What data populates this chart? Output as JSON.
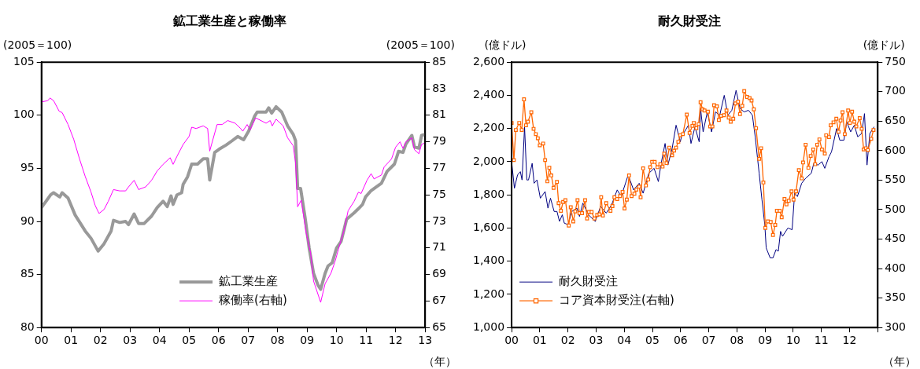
{
  "chart_data": [
    {
      "type": "line",
      "title": "鉱工業生産と稼働率",
      "ylabel": "(2005＝100)",
      "y2label": "(2005＝100)",
      "xlabel": "（年）",
      "xlim": [
        2000,
        2013
      ],
      "xticks": [
        {
          "value": 2000,
          "label": "00"
        },
        {
          "value": 2001,
          "label": "01"
        },
        {
          "value": 2002,
          "label": "02"
        },
        {
          "value": 2003,
          "label": "03"
        },
        {
          "value": 2004,
          "label": "04"
        },
        {
          "value": 2005,
          "label": "05"
        },
        {
          "value": 2006,
          "label": "06"
        },
        {
          "value": 2007,
          "label": "07"
        },
        {
          "value": 2008,
          "label": "08"
        },
        {
          "value": 2009,
          "label": "09"
        },
        {
          "value": 2010,
          "label": "10"
        },
        {
          "value": 2011,
          "label": "11"
        },
        {
          "value": 2012,
          "label": "12"
        },
        {
          "value": 2013,
          "label": "13"
        }
      ],
      "ylim": [
        80,
        105
      ],
      "yticks": [
        80,
        85,
        90,
        95,
        100,
        105
      ],
      "y2lim": [
        65,
        85
      ],
      "y2ticks": [
        65,
        67,
        69,
        71,
        73,
        75,
        77,
        79,
        81,
        83,
        85
      ],
      "legend": "bottom",
      "marker": "none",
      "series": [
        {
          "name": "鉱工業生産",
          "color": "#999999",
          "x": [
            2000.0,
            2000.31,
            2000.41,
            2000.62,
            2000.7,
            2000.9,
            2001.14,
            2001.48,
            2001.68,
            2001.92,
            2002.12,
            2002.36,
            2002.44,
            2002.65,
            2002.85,
            2002.95,
            2003.14,
            2003.29,
            2003.48,
            2003.73,
            2003.92,
            2004.12,
            2004.26,
            2004.39,
            2004.46,
            2004.59,
            2004.75,
            2004.8,
            2004.95,
            2005.09,
            2005.29,
            2005.48,
            2005.63,
            2005.7,
            2005.87,
            2006.02,
            2006.26,
            2006.46,
            2006.65,
            2006.85,
            2007.02,
            2007.22,
            2007.31,
            2007.61,
            2007.7,
            2007.8,
            2007.95,
            2008.14,
            2008.34,
            2008.53,
            2008.61,
            2008.68,
            2008.78,
            2008.93,
            2009.07,
            2009.22,
            2009.37,
            2009.46,
            2009.61,
            2009.71,
            2009.85,
            2010.0,
            2010.15,
            2010.34,
            2010.59,
            2010.74,
            2010.88,
            2010.98,
            2011.17,
            2011.27,
            2011.52,
            2011.71,
            2011.96,
            2012.1,
            2012.25,
            2012.35,
            2012.55,
            2012.64,
            2012.79,
            2012.88,
            2013.0
          ],
          "values": [
            91.3,
            92.5,
            92.7,
            92.3,
            92.7,
            92.2,
            90.6,
            89.1,
            88.4,
            87.2,
            87.9,
            89.1,
            90.1,
            89.9,
            90.0,
            89.7,
            90.7,
            89.8,
            89.8,
            90.5,
            91.3,
            91.9,
            91.4,
            92.4,
            91.6,
            92.5,
            92.7,
            93.5,
            94.2,
            95.4,
            95.4,
            95.9,
            95.9,
            93.9,
            96.5,
            96.8,
            97.2,
            97.6,
            98.0,
            97.7,
            98.5,
            99.9,
            100.3,
            100.3,
            100.7,
            100.2,
            100.8,
            100.3,
            99.0,
            98.2,
            97.6,
            93.1,
            93.1,
            90.4,
            87.5,
            85.1,
            84.0,
            83.6,
            85.1,
            85.8,
            86.1,
            87.5,
            88.1,
            90.2,
            90.8,
            91.2,
            91.6,
            92.3,
            92.9,
            93.1,
            93.6,
            94.7,
            95.4,
            96.6,
            96.5,
            97.3,
            98.1,
            97.0,
            96.9,
            98.1,
            98.2
          ]
        },
        {
          "name": "稼働率(右軸)",
          "color": "#ff00ff",
          "axis": "y2",
          "x": [
            2000.0,
            2000.21,
            2000.29,
            2000.41,
            2000.6,
            2000.7,
            2000.9,
            2001.09,
            2001.29,
            2001.48,
            2001.68,
            2001.82,
            2001.95,
            2002.12,
            2002.26,
            2002.44,
            2002.65,
            2002.85,
            2002.95,
            2003.14,
            2003.29,
            2003.53,
            2003.73,
            2003.92,
            2004.12,
            2004.36,
            2004.46,
            2004.59,
            2004.8,
            2005.0,
            2005.09,
            2005.24,
            2005.48,
            2005.63,
            2005.7,
            2005.95,
            2006.12,
            2006.31,
            2006.56,
            2006.75,
            2006.82,
            2006.97,
            2007.07,
            2007.26,
            2007.61,
            2007.75,
            2007.82,
            2007.95,
            2008.19,
            2008.34,
            2008.53,
            2008.61,
            2008.68,
            2008.8,
            2008.97,
            2009.12,
            2009.22,
            2009.46,
            2009.61,
            2009.81,
            2009.95,
            2010.1,
            2010.25,
            2010.39,
            2010.59,
            2010.74,
            2010.83,
            2011.03,
            2011.17,
            2011.27,
            2011.52,
            2011.61,
            2011.86,
            2012.0,
            2012.15,
            2012.25,
            2012.35,
            2012.55,
            2012.64,
            2012.79,
            2012.88,
            2012.98
          ],
          "values": [
            82.0,
            82.1,
            82.3,
            82.1,
            81.3,
            81.2,
            80.3,
            79.2,
            77.7,
            76.4,
            75.2,
            74.2,
            73.6,
            73.9,
            74.5,
            75.4,
            75.3,
            75.3,
            75.6,
            76.1,
            75.4,
            75.6,
            76.1,
            76.8,
            77.3,
            77.8,
            77.3,
            77.9,
            78.8,
            79.4,
            80.1,
            80.0,
            80.2,
            80.0,
            78.3,
            80.3,
            80.3,
            80.6,
            80.4,
            80.0,
            79.8,
            80.3,
            79.9,
            80.8,
            80.4,
            80.6,
            80.2,
            80.7,
            80.2,
            79.3,
            78.7,
            77.4,
            74.1,
            74.6,
            72.1,
            70.6,
            68.5,
            66.9,
            68.3,
            69.1,
            70.0,
            71.2,
            72.3,
            73.8,
            74.5,
            75.2,
            75.1,
            76.1,
            76.6,
            76.2,
            76.5,
            77.1,
            77.7,
            78.6,
            79.0,
            78.5,
            79.0,
            79.3,
            78.4,
            78.1,
            78.8,
            78.9
          ]
        }
      ]
    },
    {
      "type": "line",
      "title": "耐久財受注",
      "ylabel": "(億ドル)",
      "y2label": "(億ドル)",
      "xlabel": "（年）",
      "xlim": [
        2000,
        2013
      ],
      "xticks": [
        {
          "value": 2000,
          "label": "00"
        },
        {
          "value": 2001,
          "label": "01"
        },
        {
          "value": 2002,
          "label": "02"
        },
        {
          "value": 2003,
          "label": "03"
        },
        {
          "value": 2004,
          "label": "04"
        },
        {
          "value": 2005,
          "label": "05"
        },
        {
          "value": 2006,
          "label": "06"
        },
        {
          "value": 2007,
          "label": "07"
        },
        {
          "value": 2008,
          "label": "08"
        },
        {
          "value": 2009,
          "label": "09"
        },
        {
          "value": 2010,
          "label": "10"
        },
        {
          "value": 2011,
          "label": "11"
        },
        {
          "value": 2012,
          "label": "12"
        },
        {
          "value": 2013,
          "label": null
        }
      ],
      "ylim": [
        1000,
        2600
      ],
      "yticks": [
        {
          "value": 1000,
          "label": "1,000"
        },
        {
          "value": 1200,
          "label": "1,200"
        },
        {
          "value": 1400,
          "label": "1,400"
        },
        {
          "value": 1600,
          "label": "1,600"
        },
        {
          "value": 1800,
          "label": "1,800"
        },
        {
          "value": 2000,
          "label": "2,000"
        },
        {
          "value": 2200,
          "label": "2,200"
        },
        {
          "value": 2400,
          "label": "2,400"
        },
        {
          "value": 2600,
          "label": "2,600"
        }
      ],
      "y2lim": [
        300,
        750
      ],
      "y2ticks": [
        300,
        350,
        400,
        450,
        500,
        550,
        600,
        650,
        700,
        750
      ],
      "legend": "bottom left",
      "series": [
        {
          "name": "耐久財受注",
          "color": "#000080",
          "marker": "none",
          "x": [
            2000.0,
            2000.1,
            2000.21,
            2000.31,
            2000.37,
            2000.46,
            2000.54,
            2000.6,
            2000.73,
            2000.8,
            2000.9,
            2001.02,
            2001.19,
            2001.29,
            2001.38,
            2001.51,
            2001.61,
            2001.7,
            2001.8,
            2001.87,
            2002.0,
            2002.14,
            2002.32,
            2002.41,
            2002.53,
            2002.73,
            2002.97,
            2003.16,
            2003.36,
            2003.55,
            2003.75,
            2003.89,
            2004.14,
            2004.33,
            2004.53,
            2004.67,
            2004.87,
            2005.06,
            2005.21,
            2005.31,
            2005.45,
            2005.55,
            2005.7,
            2005.84,
            2005.99,
            2006.03,
            2006.28,
            2006.37,
            2006.51,
            2006.66,
            2006.71,
            2006.8,
            2006.95,
            2007.1,
            2007.24,
            2007.39,
            2007.55,
            2007.68,
            2007.82,
            2007.97,
            2008.11,
            2008.26,
            2008.41,
            2008.55,
            2008.65,
            2008.79,
            2008.89,
            2008.99,
            2009.04,
            2009.18,
            2009.28,
            2009.39,
            2009.47,
            2009.55,
            2009.62,
            2009.81,
            2009.96,
            2010.05,
            2010.15,
            2010.3,
            2010.44,
            2010.64,
            2010.73,
            2010.88,
            2011.02,
            2011.12,
            2011.27,
            2011.36,
            2011.54,
            2011.65,
            2011.8,
            2011.9,
            2012.04,
            2012.17,
            2012.29,
            2012.43,
            2012.53,
            2012.62,
            2012.72,
            2012.87
          ],
          "values": [
            2000,
            1840,
            1920,
            1940,
            1890,
            2210,
            1890,
            1890,
            1990,
            1870,
            1890,
            1780,
            1820,
            1720,
            1780,
            1700,
            1700,
            1640,
            1680,
            1630,
            1620,
            1700,
            1720,
            1670,
            1750,
            1680,
            1640,
            1730,
            1690,
            1740,
            1830,
            1790,
            1920,
            1830,
            1870,
            1810,
            1930,
            1960,
            1880,
            1990,
            2110,
            1980,
            2080,
            2220,
            2120,
            2150,
            2220,
            2110,
            2210,
            2120,
            2320,
            2180,
            2300,
            2180,
            2300,
            2280,
            2400,
            2280,
            2310,
            2430,
            2320,
            2300,
            2310,
            2280,
            2150,
            1930,
            1770,
            1620,
            1480,
            1420,
            1420,
            1470,
            1460,
            1580,
            1550,
            1600,
            1590,
            1810,
            1790,
            1870,
            1900,
            1930,
            1990,
            1980,
            2000,
            1960,
            2030,
            2060,
            2200,
            2130,
            2130,
            2240,
            2180,
            2220,
            2150,
            2170,
            2290,
            1980,
            2170,
            2210
          ]
        },
        {
          "name": "コア資本財受注(右軸)",
          "color": "#ff6600",
          "axis": "y2",
          "marker": "square",
          "x": [
            2000.0,
            2000.08,
            2000.15,
            2000.27,
            2000.36,
            2000.44,
            2000.51,
            2000.58,
            2000.7,
            2000.78,
            2000.86,
            2000.93,
            2001.0,
            2001.12,
            2001.19,
            2001.27,
            2001.34,
            2001.41,
            2001.49,
            2001.61,
            2001.67,
            2001.75,
            2001.83,
            2001.91,
            2002.03,
            2002.1,
            2002.19,
            2002.26,
            2002.34,
            2002.41,
            2002.5,
            2002.61,
            2002.68,
            2002.75,
            2002.84,
            2002.94,
            2003.04,
            2003.12,
            2003.18,
            2003.24,
            2003.36,
            2003.51,
            2003.58,
            2003.65,
            2003.75,
            2003.85,
            2003.94,
            2004.01,
            2004.09,
            2004.17,
            2004.26,
            2004.36,
            2004.43,
            2004.53,
            2004.58,
            2004.67,
            2004.77,
            2004.85,
            2004.92,
            2004.99,
            2005.08,
            2005.18,
            2005.28,
            2005.36,
            2005.42,
            2005.5,
            2005.6,
            2005.7,
            2005.77,
            2005.84,
            2005.92,
            2005.99,
            2006.08,
            2006.22,
            2006.32,
            2006.42,
            2006.47,
            2006.56,
            2006.64,
            2006.71,
            2006.78,
            2006.85,
            2006.97,
            2007.05,
            2007.13,
            2007.19,
            2007.29,
            2007.36,
            2007.44,
            2007.54,
            2007.63,
            2007.71,
            2007.78,
            2007.87,
            2007.95,
            2008.04,
            2008.11,
            2008.19,
            2008.26,
            2008.36,
            2008.45,
            2008.52,
            2008.6,
            2008.68,
            2008.79,
            2008.86,
            2008.94,
            2009.01,
            2009.1,
            2009.2,
            2009.28,
            2009.36,
            2009.42,
            2009.52,
            2009.59,
            2009.69,
            2009.76,
            2009.84,
            2009.94,
            2010.01,
            2010.1,
            2010.2,
            2010.3,
            2010.35,
            2010.44,
            2010.54,
            2010.62,
            2010.71,
            2010.78,
            2010.85,
            2010.93,
            2011.02,
            2011.12,
            2011.17,
            2011.27,
            2011.33,
            2011.43,
            2011.53,
            2011.61,
            2011.68,
            2011.75,
            2011.83,
            2011.95,
            2012.01,
            2012.09,
            2012.17,
            2012.24,
            2012.36,
            2012.43,
            2012.5,
            2012.58,
            2012.65,
            2012.77,
            2012.85
          ],
          "values": [
            647,
            584,
            635,
            647,
            635,
            687,
            643,
            649,
            665,
            637,
            628,
            621,
            609,
            612,
            584,
            548,
            571,
            558,
            537,
            547,
            511,
            498,
            513,
            516,
            473,
            504,
            480,
            497,
            516,
            494,
            494,
            516,
            485,
            496,
            496,
            485,
            491,
            492,
            521,
            490,
            511,
            498,
            506,
            521,
            518,
            523,
            530,
            502,
            517,
            558,
            523,
            527,
            534,
            539,
            521,
            570,
            541,
            551,
            572,
            581,
            581,
            572,
            577,
            573,
            595,
            579,
            605,
            592,
            600,
            605,
            615,
            626,
            628,
            661,
            630,
            642,
            647,
            638,
            645,
            682,
            670,
            668,
            666,
            641,
            641,
            677,
            675,
            652,
            659,
            660,
            668,
            656,
            649,
            654,
            680,
            683,
            662,
            676,
            701,
            691,
            689,
            685,
            670,
            638,
            586,
            604,
            546,
            469,
            480,
            479,
            457,
            474,
            498,
            498,
            487,
            518,
            509,
            515,
            531,
            517,
            531,
            567,
            553,
            580,
            610,
            571,
            591,
            602,
            577,
            610,
            619,
            602,
            595,
            626,
            623,
            643,
            648,
            654,
            632,
            651,
            665,
            628,
            668,
            647,
            666,
            649,
            641,
            655,
            637,
            602,
            604,
            601,
            620,
            635
          ]
        }
      ]
    }
  ]
}
